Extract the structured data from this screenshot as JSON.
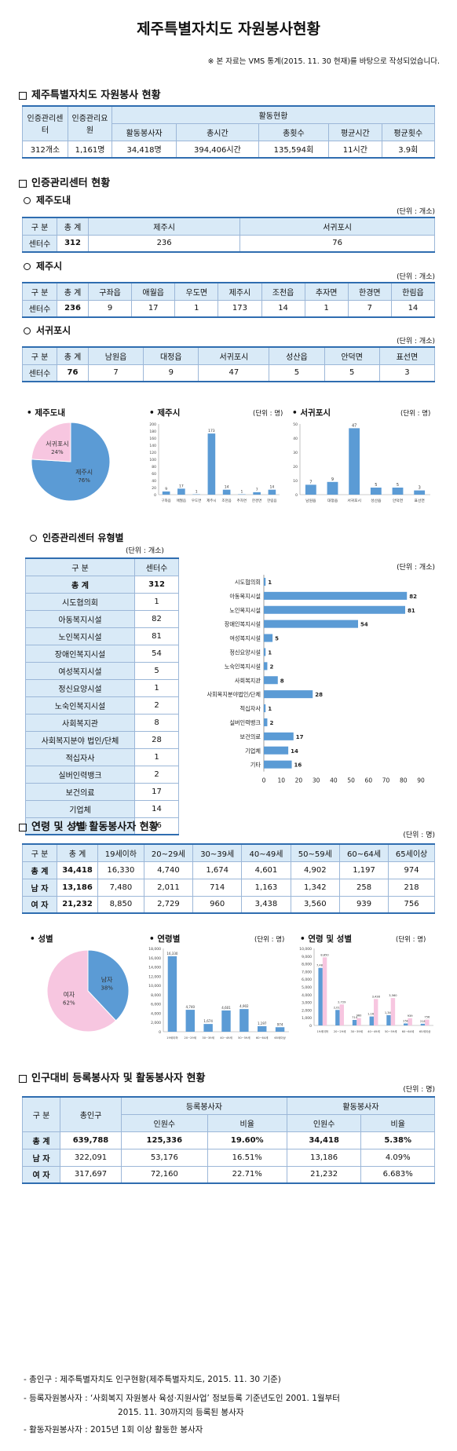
{
  "title": "제주특별자치도 자원봉사현황",
  "source_note": "※ 본 자료는 VMS 통계(2015. 11. 30 현재)를 바탕으로 작성되었습니다.",
  "s1": {
    "title": "제주특별자치도 자원봉사 현황",
    "h_center": "인증관리센터",
    "h_staff": "인증관리요원",
    "h_activity": "활동현황",
    "cols": [
      "활동봉사자",
      "총시간",
      "총횟수",
      "평균시간",
      "평균횟수"
    ],
    "row": [
      "312개소",
      "1,161명",
      "34,418명",
      "394,406시간",
      "135,594회",
      "11시간",
      "3.9회"
    ]
  },
  "s2": {
    "title": "인증관리센터 현황",
    "unit": "(단위 : 개소)",
    "jeju_do": {
      "label": "제주도내",
      "h": [
        "구 분",
        "총 계",
        "제주시",
        "서귀포시"
      ],
      "row": [
        "센터수",
        "312",
        "236",
        "76"
      ]
    },
    "jeju_si": {
      "label": "제주시",
      "h": [
        "구 분",
        "총 계",
        "구좌읍",
        "애월읍",
        "우도면",
        "제주시",
        "조천읍",
        "추자면",
        "한경면",
        "한림읍"
      ],
      "row": [
        "센터수",
        "236",
        "9",
        "17",
        "1",
        "173",
        "14",
        "1",
        "7",
        "14"
      ]
    },
    "seogwipo": {
      "label": "서귀포시",
      "h": [
        "구 분",
        "총 계",
        "남원읍",
        "대정읍",
        "서귀포시",
        "성산읍",
        "안덕면",
        "표선면"
      ],
      "row": [
        "센터수",
        "76",
        "7",
        "9",
        "47",
        "5",
        "5",
        "3"
      ]
    }
  },
  "charts1": {
    "pie_title": "제주도내",
    "bar1_title": "제주시",
    "bar2_title": "서귀포시",
    "unit": "(단위 : 명)"
  },
  "s3": {
    "title": "인증관리센터 유형별",
    "unit": "(단위 : 개소)",
    "h": [
      "구 분",
      "센터수"
    ],
    "total": [
      "총 계",
      "312"
    ],
    "rows": [
      [
        "시도협의회",
        "1"
      ],
      [
        "아동복지시설",
        "82"
      ],
      [
        "노인복지시설",
        "81"
      ],
      [
        "장애인복지시설",
        "54"
      ],
      [
        "여성복지시설",
        "5"
      ],
      [
        "정신요양시설",
        "1"
      ],
      [
        "노숙인복지시설",
        "2"
      ],
      [
        "사회복지관",
        "8"
      ],
      [
        "사회복지분야 법인/단체",
        "28"
      ],
      [
        "적십자사",
        "1"
      ],
      [
        "실버인력뱅크",
        "2"
      ],
      [
        "보건의료",
        "17"
      ],
      [
        "기업체",
        "14"
      ],
      [
        "기타",
        "16"
      ]
    ]
  },
  "s4": {
    "title": "연령 및 성별 활동봉사자 현황",
    "unit": "(단위 : 명)",
    "h": [
      "구 분",
      "총 계",
      "19세이하",
      "20~29세",
      "30~39세",
      "40~49세",
      "50~59세",
      "60~64세",
      "65세이상"
    ],
    "rows": [
      [
        "총 계",
        "34,418",
        "16,330",
        "4,740",
        "1,674",
        "4,601",
        "4,902",
        "1,197",
        "974"
      ],
      [
        "남 자",
        "13,186",
        "7,480",
        "2,011",
        "714",
        "1,163",
        "1,342",
        "258",
        "218"
      ],
      [
        "여 자",
        "21,232",
        "8,850",
        "2,729",
        "960",
        "3,438",
        "3,560",
        "939",
        "756"
      ]
    ]
  },
  "charts2": {
    "pie_title": "성별",
    "bar1_title": "연령별",
    "bar2_title": "연령 및 성별",
    "unit": "(단위 : 명)"
  },
  "s5": {
    "title": "인구대비 등록봉사자 및 활동봉사자 현황",
    "unit": "(단위 : 명)",
    "h_div": "구 분",
    "h_pop": "총인구",
    "h_reg": "등록봉사자",
    "h_act": "활동봉사자",
    "h_cnt": "인원수",
    "h_rate": "비율",
    "rows": [
      [
        "총 계",
        "639,788",
        "125,336",
        "19.60%",
        "34,418",
        "5.38%"
      ],
      [
        "남 자",
        "322,091",
        "53,176",
        "16.51%",
        "13,186",
        "4.09%"
      ],
      [
        "여 자",
        "317,697",
        "72,160",
        "22.71%",
        "21,232",
        "6.683%"
      ]
    ]
  },
  "notes": [
    "- 총인구 : 제주특별자치도 인구현황(제주특별자치도, 2015. 11. 30 기준)",
    "- 등록자원봉사자 : ‘사회복지 자원봉사 육성·지원사업’ 정보등록 기준년도인 2001. 1월부터",
    "2015. 11. 30까지의 등록된 봉사자",
    "- 활동자원봉사자 : 2015년 1회 이상 활동한 봉사자"
  ],
  "chart_data": [
    {
      "type": "pie",
      "title": "제주도내",
      "categories": [
        "제주시",
        "서귀포시"
      ],
      "values": [
        76,
        24
      ],
      "labels": [
        "제주시 76%",
        "서귀포시 24%"
      ],
      "colors": [
        "#5b9bd5",
        "#f7c6e0"
      ]
    },
    {
      "type": "bar",
      "title": "제주시",
      "categories": [
        "구좌읍",
        "애월읍",
        "우도면",
        "제주시",
        "조천읍",
        "추자면",
        "한경면",
        "한림읍"
      ],
      "values": [
        9,
        17,
        1,
        173,
        14,
        1,
        7,
        14
      ],
      "ylim": [
        0,
        200
      ],
      "yticks": [
        0,
        20,
        40,
        60,
        80,
        100,
        120,
        140,
        160,
        180,
        200
      ]
    },
    {
      "type": "bar",
      "title": "서귀포시",
      "categories": [
        "남원읍",
        "대정읍",
        "서귀포시",
        "성산읍",
        "안덕면",
        "표선면"
      ],
      "values": [
        7,
        9,
        47,
        5,
        5,
        3
      ],
      "ylim": [
        0,
        50
      ],
      "yticks": [
        0,
        10,
        20,
        30,
        40,
        50
      ]
    },
    {
      "type": "bar",
      "orientation": "horizontal",
      "categories": [
        "시도협의회",
        "아동복지시설",
        "노인복지시설",
        "장애인복지시설",
        "여성복지시설",
        "정신요양시설",
        "노숙인복지시설",
        "사회복지관",
        "사회복지분야법인/단체",
        "적십자사",
        "실버인력뱅크",
        "보건의료",
        "기업체",
        "기타"
      ],
      "values": [
        1,
        82,
        81,
        54,
        5,
        1,
        2,
        8,
        28,
        1,
        2,
        17,
        14,
        16
      ],
      "xlim": [
        0,
        90
      ],
      "xticks": [
        0,
        10,
        20,
        30,
        40,
        50,
        60,
        70,
        80,
        90
      ]
    },
    {
      "type": "pie",
      "title": "성별",
      "categories": [
        "남자",
        "여자"
      ],
      "values": [
        38,
        62
      ],
      "labels": [
        "남자 38%",
        "여자 62%"
      ],
      "colors": [
        "#5b9bd5",
        "#f7c6e0"
      ]
    },
    {
      "type": "bar",
      "title": "연령별",
      "categories": [
        "19세이하",
        "20~29세",
        "30~39세",
        "40~49세",
        "50~59세",
        "60~64세",
        "65세이상"
      ],
      "values": [
        16330,
        4740,
        1674,
        4601,
        4902,
        1197,
        974
      ],
      "ylim": [
        0,
        18000
      ]
    },
    {
      "type": "bar",
      "title": "연령 및 성별",
      "categories": [
        "19세이하",
        "20~29세",
        "30~39세",
        "40~49세",
        "50~59세",
        "60~64세",
        "65세이상"
      ],
      "series": [
        {
          "name": "남자",
          "values": [
            7480,
            2011,
            714,
            1163,
            1342,
            258,
            218
          ],
          "color": "#5b9bd5"
        },
        {
          "name": "여자",
          "values": [
            8850,
            2729,
            960,
            3438,
            3560,
            939,
            756
          ],
          "color": "#f7c6e0"
        }
      ],
      "ylim": [
        0,
        10000
      ]
    }
  ]
}
